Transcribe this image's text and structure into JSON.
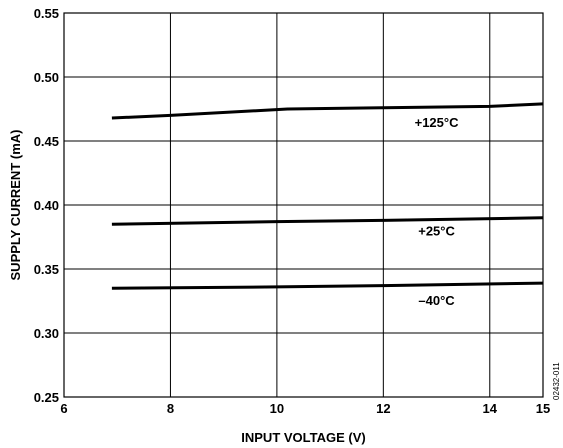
{
  "chart_data": {
    "type": "line",
    "xlabel": "INPUT VOLTAGE (V)",
    "ylabel": "SUPPLY CURRENT (mA)",
    "xlim": [
      6,
      15
    ],
    "ylim": [
      0.25,
      0.55
    ],
    "xticks": [
      6,
      8,
      10,
      12,
      14,
      15
    ],
    "x_tick_labels": [
      "6",
      "8",
      "10",
      "12",
      "14",
      "15"
    ],
    "yticks": [
      0.25,
      0.3,
      0.35,
      0.4,
      0.45,
      0.5,
      0.55
    ],
    "y_tick_labels": [
      "0.25",
      "0.30",
      "0.35",
      "0.40",
      "0.45",
      "0.50",
      "0.55"
    ],
    "grid": true,
    "figure_id": "02432-011",
    "series": [
      {
        "name": "+125°C",
        "points": [
          [
            6.9,
            0.468
          ],
          [
            8.0,
            0.47
          ],
          [
            10.2,
            0.475
          ],
          [
            12.0,
            0.476
          ],
          [
            14.0,
            0.477
          ],
          [
            15.0,
            0.479
          ]
        ],
        "label_at": [
          13.0,
          0.461
        ]
      },
      {
        "name": "+25°C",
        "points": [
          [
            6.9,
            0.385
          ],
          [
            10.0,
            0.387
          ],
          [
            12.0,
            0.388
          ],
          [
            15.0,
            0.39
          ]
        ],
        "label_at": [
          13.0,
          0.376
        ]
      },
      {
        "name": "–40°C",
        "points": [
          [
            6.9,
            0.335
          ],
          [
            10.0,
            0.336
          ],
          [
            12.0,
            0.337
          ],
          [
            15.0,
            0.339
          ]
        ],
        "label_at": [
          13.0,
          0.322
        ]
      }
    ]
  }
}
